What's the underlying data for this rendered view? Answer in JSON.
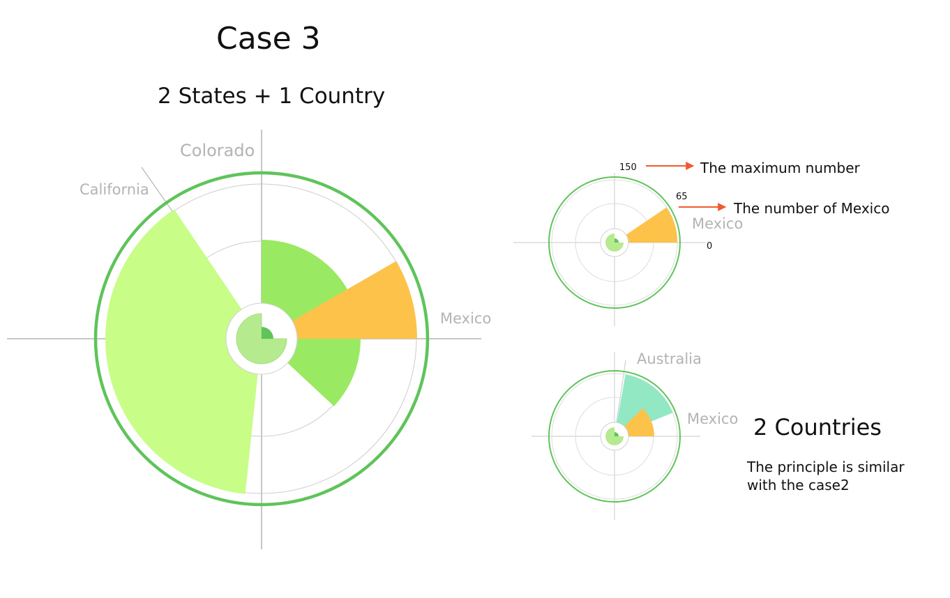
{
  "title": "Case 3",
  "subtitle": "2 States + 1 Country",
  "big_chart": {
    "labels": {
      "colorado": "Colorado",
      "california": "California",
      "mexico": "Mexico"
    }
  },
  "small_chart_1": {
    "max_tick": "150",
    "value_tick": "65",
    "zero_tick": "0",
    "country_label": "Mexico",
    "annotation_max": "The maximum number",
    "annotation_value": "The number of Mexico",
    "max_value": 150,
    "mexico_value": 65
  },
  "small_chart_2": {
    "labels": {
      "australia": "Australia",
      "mexico": "Mexico"
    }
  },
  "two_countries": {
    "title": "2 Countries",
    "note_line1": "The principle is similar",
    "note_line2": "with the case2"
  },
  "colors": {
    "ring": "#5fc45a",
    "california": "#c8fd88",
    "colorado": "#9ae962",
    "mexico": "#fdc24a",
    "australia": "#91e8c3",
    "center": "#b6ea8e",
    "center_dot": "#5fc45a",
    "axis": "#b3b3b3",
    "label": "#b3b3b3",
    "arrow": "#f05a2e"
  }
}
